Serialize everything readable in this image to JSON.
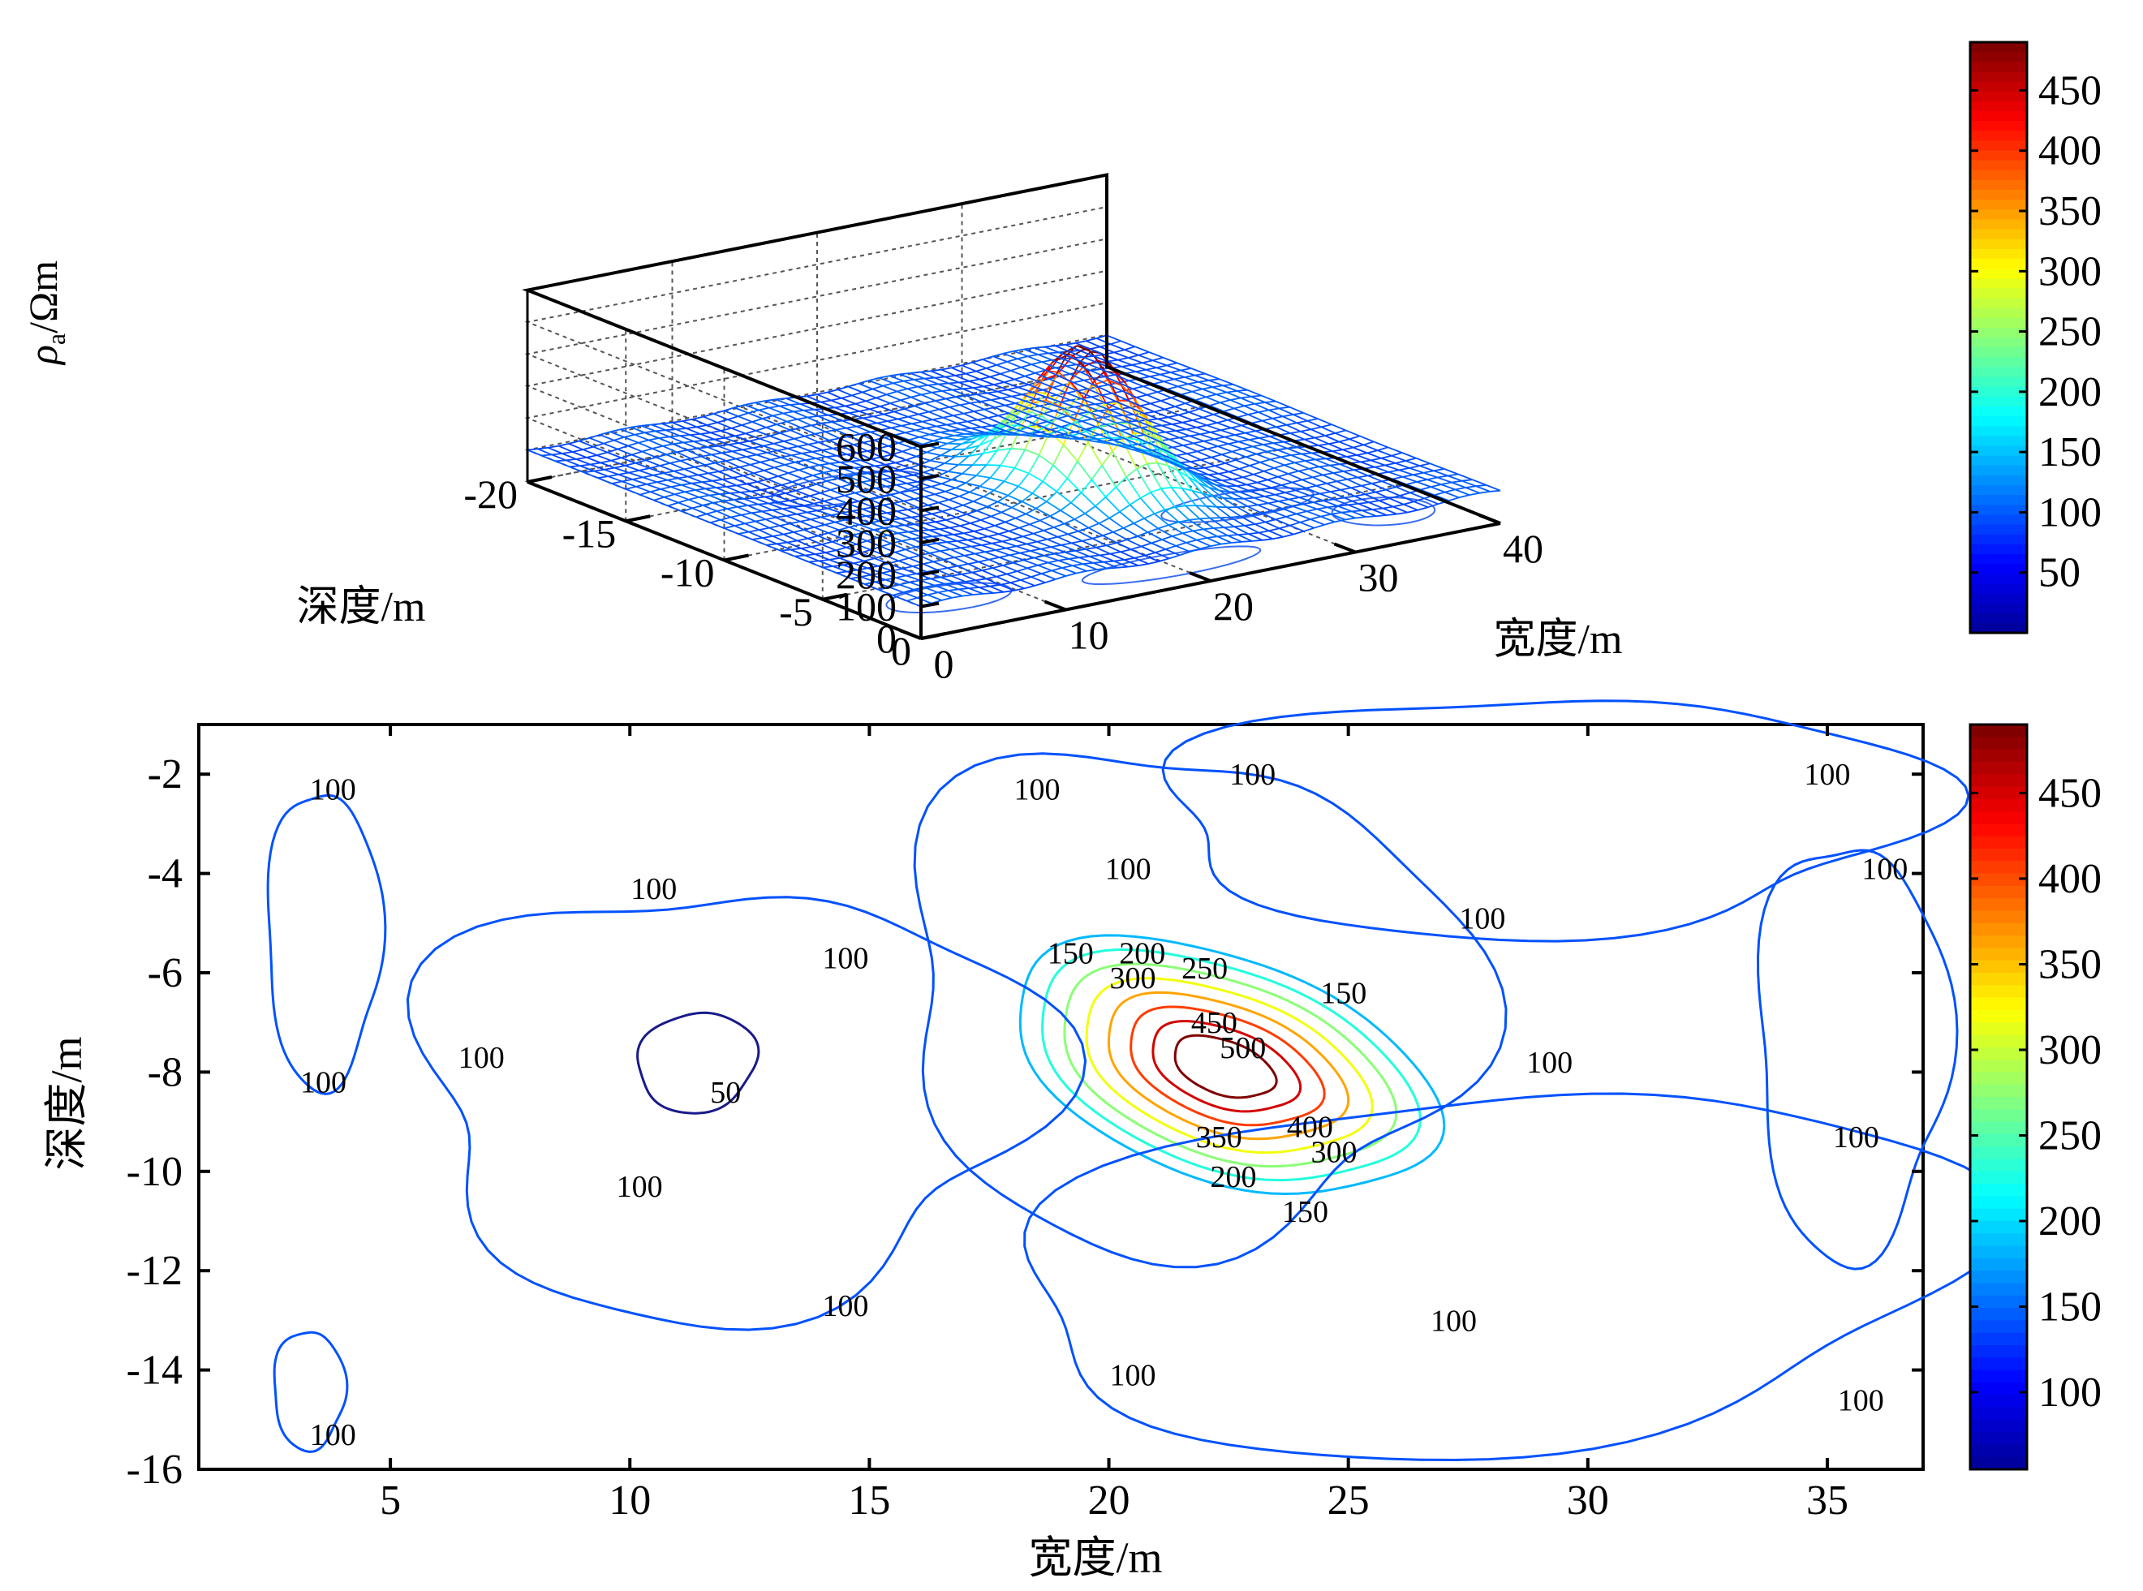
{
  "colorbar_colors": [
    "#00008f",
    "#0000ff",
    "#0080ff",
    "#00ffff",
    "#80ff80",
    "#ffff00",
    "#ff8000",
    "#ff0000",
    "#800000"
  ],
  "chart_data": [
    {
      "type": "surface",
      "xlabel": "宽度/m",
      "ylabel": "深度/m",
      "zlabel_main": "ρ",
      "zlabel_sub": "a",
      "zlabel_rest": "/Ωm",
      "x_ticks": [
        "0",
        "10",
        "20",
        "30",
        "40"
      ],
      "y_ticks": [
        "0",
        "-5",
        "-10",
        "-15",
        "-20"
      ],
      "z_ticks": [
        "0",
        "100",
        "200",
        "300",
        "400",
        "500",
        "600"
      ],
      "xlim": [
        0,
        40
      ],
      "ylim": [
        -20,
        0
      ],
      "zlim": [
        0,
        600
      ],
      "peak": {
        "x": 21.5,
        "y": -7.5,
        "z": 540
      },
      "background_value": 100,
      "colorbar_ticks": [
        "50",
        "100",
        "150",
        "200",
        "250",
        "300",
        "350",
        "400",
        "450"
      ],
      "colorbar_range": [
        0,
        490
      ]
    },
    {
      "type": "contour",
      "xlabel": "宽度/m",
      "ylabel": "深度/m",
      "x_ticks": [
        "5",
        "10",
        "15",
        "20",
        "25",
        "30",
        "35"
      ],
      "y_ticks": [
        "-2",
        "-4",
        "-6",
        "-8",
        "-10",
        "-12",
        "-14",
        "-16"
      ],
      "xlim": [
        1,
        37
      ],
      "ylim": [
        -16,
        -1
      ],
      "contour_levels": [
        50,
        100,
        150,
        200,
        250,
        300,
        350,
        400,
        450,
        500
      ],
      "contour_labels": [
        {
          "text": "100",
          "x": 3.8,
          "y": -2.3
        },
        {
          "text": "100",
          "x": 3.6,
          "y": -8.2
        },
        {
          "text": "100",
          "x": 3.8,
          "y": -15.3
        },
        {
          "text": "100",
          "x": 6.9,
          "y": -7.7
        },
        {
          "text": "100",
          "x": 10.5,
          "y": -4.3
        },
        {
          "text": "50",
          "x": 12.0,
          "y": -8.4
        },
        {
          "text": "100",
          "x": 10.2,
          "y": -10.3
        },
        {
          "text": "100",
          "x": 14.5,
          "y": -5.7
        },
        {
          "text": "100",
          "x": 14.5,
          "y": -12.7
        },
        {
          "text": "100",
          "x": 18.5,
          "y": -2.3
        },
        {
          "text": "100",
          "x": 20.4,
          "y": -3.9
        },
        {
          "text": "100",
          "x": 23.0,
          "y": -2.0
        },
        {
          "text": "100",
          "x": 20.5,
          "y": -14.1
        },
        {
          "text": "100",
          "x": 27.8,
          "y": -4.9
        },
        {
          "text": "100",
          "x": 29.2,
          "y": -7.8
        },
        {
          "text": "100",
          "x": 27.2,
          "y": -13.0
        },
        {
          "text": "100",
          "x": 35.0,
          "y": -2.0
        },
        {
          "text": "100",
          "x": 36.2,
          "y": -3.9
        },
        {
          "text": "100",
          "x": 35.6,
          "y": -9.3
        },
        {
          "text": "100",
          "x": 35.7,
          "y": -14.6
        },
        {
          "text": "150",
          "x": 19.2,
          "y": -5.6
        },
        {
          "text": "200",
          "x": 20.7,
          "y": -5.6
        },
        {
          "text": "250",
          "x": 22.0,
          "y": -5.9
        },
        {
          "text": "300",
          "x": 20.5,
          "y": -6.1
        },
        {
          "text": "150",
          "x": 24.9,
          "y": -6.4
        },
        {
          "text": "450",
          "x": 22.2,
          "y": -7.0
        },
        {
          "text": "500",
          "x": 22.8,
          "y": -7.5
        },
        {
          "text": "400",
          "x": 24.2,
          "y": -9.1
        },
        {
          "text": "350",
          "x": 22.3,
          "y": -9.3
        },
        {
          "text": "300",
          "x": 24.7,
          "y": -9.6
        },
        {
          "text": "200",
          "x": 22.6,
          "y": -10.1
        },
        {
          "text": "150",
          "x": 24.1,
          "y": -10.8
        }
      ],
      "colorbar_ticks": [
        "100",
        "150",
        "200",
        "250",
        "300",
        "350",
        "400",
        "450"
      ],
      "colorbar_range": [
        55,
        490
      ]
    }
  ]
}
